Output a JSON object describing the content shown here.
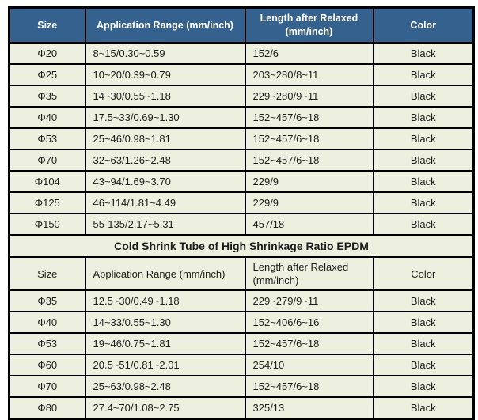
{
  "table": {
    "header": {
      "size": "Size",
      "application_range": "Application Range (mm/inch)",
      "length_line1": "Length after Relaxed",
      "length_line2": "(mm/inch)",
      "color": "Color"
    },
    "section1_rows": [
      [
        "Φ20",
        "8~15/0.30~0.59",
        "152/6",
        "Black"
      ],
      [
        "Φ25",
        "10~20/0.39~0.79",
        "203~280/8~11",
        "Black"
      ],
      [
        "Φ35",
        "14~30/0.55~1.18",
        "229~280/9~11",
        "Black"
      ],
      [
        "Φ40",
        "17.5~33/0.69~1.30",
        "152~457/6~18",
        "Black"
      ],
      [
        "Φ53",
        "25~46/0.98~1.81",
        "152~457/6~18",
        "Black"
      ],
      [
        "Φ70",
        "32~63/1.26~2.48",
        "152~457/6~18",
        "Black"
      ],
      [
        "Φ104",
        "43~94/1.69~3.70",
        "229/9",
        "Black"
      ],
      [
        "Φ125",
        "46~114/1.81~4.49",
        "229/9",
        "Black"
      ],
      [
        "Φ150",
        "55-135/2.17~5.31",
        "457/18",
        "Black"
      ]
    ],
    "section2_title": "Cold Shrink Tube of High Shrinkage Ratio EPDM",
    "header2": {
      "size": "Size",
      "application_range": "Application Range (mm/inch)",
      "length_line1": "Length after Relaxed",
      "length_line2": "(mm/inch)",
      "color": "Color"
    },
    "section2_rows": [
      [
        "Φ35",
        "12.5~30/0.49~1.18",
        "229~279/9~11",
        "Black"
      ],
      [
        "Φ40",
        "14~33/0.55~1.30",
        "152~406/6~16",
        "Black"
      ],
      [
        "Φ53",
        "19~46/0.75~1.81",
        "152~457/6~18",
        "Black"
      ],
      [
        "Φ60",
        "20.5~51/0.81~2.01",
        "254/10",
        "Black"
      ],
      [
        "Φ70",
        "25~63/0.98~2.48",
        "152~457/6~18",
        "Black"
      ],
      [
        "Φ80",
        "27.4~70/1.08~2.75",
        "325/13",
        "Black"
      ]
    ],
    "colors": {
      "header_bg": "#35618f",
      "header_text": "#ffffff",
      "row_bg": "#edf0de",
      "border": "#000000",
      "text": "#1c1c1c"
    }
  }
}
